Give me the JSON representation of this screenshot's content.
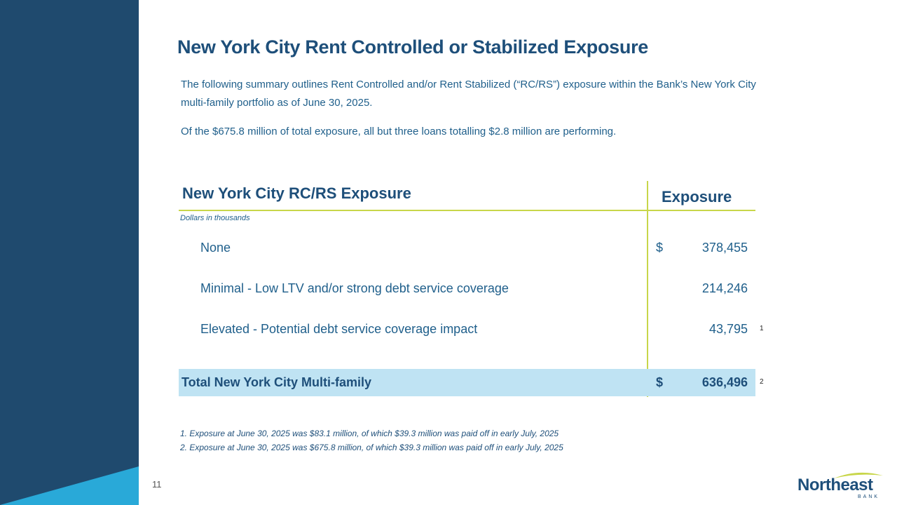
{
  "page": {
    "number": "11",
    "title": "New York City Rent Controlled or Stabilized Exposure",
    "intro": "The following summary outlines Rent Controlled and/or Rent Stabilized (“RC/RS”) exposure within the Bank’s New York City multi-family portfolio as of June 30, 2025.",
    "intro2": "Of the $675.8 million of total exposure, all but three loans totalling $2.8 million are performing."
  },
  "table": {
    "title": "New York City RC/RS Exposure",
    "column_header": "Exposure",
    "units": "Dollars in thousands",
    "rows": [
      {
        "label": "None",
        "dollar": "$",
        "value": "378,455",
        "note": ""
      },
      {
        "label": "Minimal - Low LTV and/or strong debt service coverage",
        "dollar": "",
        "value": "214,246",
        "note": ""
      },
      {
        "label": "Elevated - Potential debt service coverage impact",
        "dollar": "",
        "value": "43,795",
        "note": "1"
      }
    ],
    "total": {
      "label": "Total New York City Multi-family",
      "dollar": "$",
      "value": "636,496",
      "note": "2"
    }
  },
  "footnotes": [
    "1. Exposure at June 30, 2025 was $83.1 million, of which $39.3 million was paid off in early July, 2025",
    "2. Exposure at June 30, 2025 was $675.8 million, of which $39.3 million was paid off in early July, 2025"
  ],
  "logo": {
    "word": "Northeast",
    "sub": "BANK"
  },
  "colors": {
    "sidebar": "#1f4a6e",
    "accent_triangle": "#29a9d8",
    "rule": "#c8d64a",
    "total_fill": "#bfe3f3",
    "text": "#1e4f7a"
  }
}
